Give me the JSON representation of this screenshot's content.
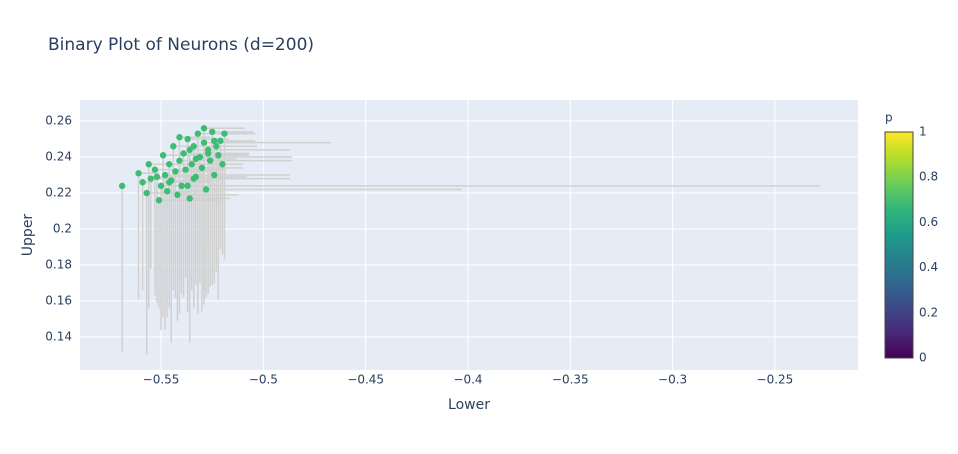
{
  "chart_data": {
    "type": "scatter",
    "title": "Binary Plot of Neurons (d=200)",
    "xlabel": "Lower",
    "ylabel": "Upper",
    "xlim": [
      -0.5896,
      -0.2094
    ],
    "ylim": [
      0.1217,
      0.2717
    ],
    "xticks": [
      {
        "value": -0.55,
        "label": "−0.55"
      },
      {
        "value": -0.5,
        "label": "−0.5"
      },
      {
        "value": -0.45,
        "label": "−0.45"
      },
      {
        "value": -0.4,
        "label": "−0.4"
      },
      {
        "value": -0.35,
        "label": "−0.35"
      },
      {
        "value": -0.3,
        "label": "−0.3"
      },
      {
        "value": -0.25,
        "label": "−0.25"
      }
    ],
    "yticks": [
      0.14,
      0.16,
      0.18,
      0.2,
      0.22,
      0.24,
      0.26
    ],
    "grid": true,
    "series": [
      {
        "color": "#3dbc74",
        "error_color": "#d0d0d0",
        "x": [
          -0.569,
          -0.561,
          -0.559,
          -0.557,
          -0.556,
          -0.555,
          -0.553,
          -0.551,
          -0.55,
          -0.549,
          -0.548,
          -0.547,
          -0.546,
          -0.545,
          -0.544,
          -0.543,
          -0.542,
          -0.541,
          -0.54,
          -0.539,
          -0.537,
          -0.537,
          -0.536,
          -0.535,
          -0.534,
          -0.533,
          -0.532,
          -0.531,
          -0.53,
          -0.529,
          -0.528,
          -0.527,
          -0.526,
          -0.525,
          -0.524,
          -0.523,
          -0.522,
          -0.521,
          -0.52,
          -0.519,
          -0.534,
          -0.529,
          -0.541,
          -0.538,
          -0.546,
          -0.527,
          -0.524,
          -0.536,
          -0.552,
          -0.533
        ],
        "y": [
          0.224,
          0.231,
          0.226,
          0.22,
          0.236,
          0.228,
          0.233,
          0.216,
          0.224,
          0.241,
          0.23,
          0.221,
          0.236,
          0.227,
          0.246,
          0.232,
          0.219,
          0.238,
          0.224,
          0.242,
          0.224,
          0.25,
          0.217,
          0.236,
          0.246,
          0.229,
          0.253,
          0.24,
          0.234,
          0.248,
          0.222,
          0.244,
          0.238,
          0.254,
          0.23,
          0.246,
          0.241,
          0.249,
          0.236,
          0.253,
          0.228,
          0.256,
          0.251,
          0.233,
          0.226,
          0.242,
          0.249,
          0.244,
          0.229,
          0.239
        ],
        "error_y_minus": [
          0.092,
          0.07,
          0.06,
          0.09,
          0.08,
          0.05,
          0.07,
          0.06,
          0.08,
          0.09,
          0.086,
          0.07,
          0.06,
          0.09,
          0.08,
          0.07,
          0.07,
          0.085,
          0.06,
          0.08,
          0.07,
          0.09,
          0.08,
          0.07,
          0.09,
          0.06,
          0.1,
          0.07,
          0.08,
          0.09,
          0.06,
          0.08,
          0.07,
          0.085,
          0.06,
          0.07,
          0.08,
          0.06,
          0.05,
          0.07,
          0.07,
          0.09,
          0.08,
          0.06,
          0.07,
          0.05,
          0.07,
          0.09,
          0.07,
          0.06
        ],
        "error_x_plus": [
          0,
          0.01,
          0.005,
          0.02,
          0.015,
          0.01,
          0.02,
          0.03,
          0.02,
          0.02,
          0.025,
          0.02,
          0.03,
          0.02,
          0.01,
          0.02,
          0.03,
          0.025,
          0.02,
          0.03,
          0.309,
          0.02,
          0.02,
          0.02,
          0.02,
          0.025,
          0.02,
          0.045,
          0.02,
          0.062,
          0.125,
          0.04,
          0.04,
          0.02,
          0.037,
          0.02,
          0.015,
          0.012,
          0.01,
          0.015,
          0.047,
          0.02,
          0.015,
          0.02,
          0.02,
          0.02,
          0.02,
          0.02,
          0.02,
          0.02
        ]
      }
    ],
    "colorbar": {
      "title": "p",
      "lim": [
        0,
        1
      ],
      "ticks": [
        0,
        0.2,
        0.4,
        0.6,
        0.8,
        1
      ],
      "colors": [
        "#440154",
        "#482878",
        "#3e4989",
        "#31688e",
        "#26828e",
        "#1f9e89",
        "#35b779",
        "#6ece58",
        "#b5de2b",
        "#fde725"
      ]
    }
  }
}
